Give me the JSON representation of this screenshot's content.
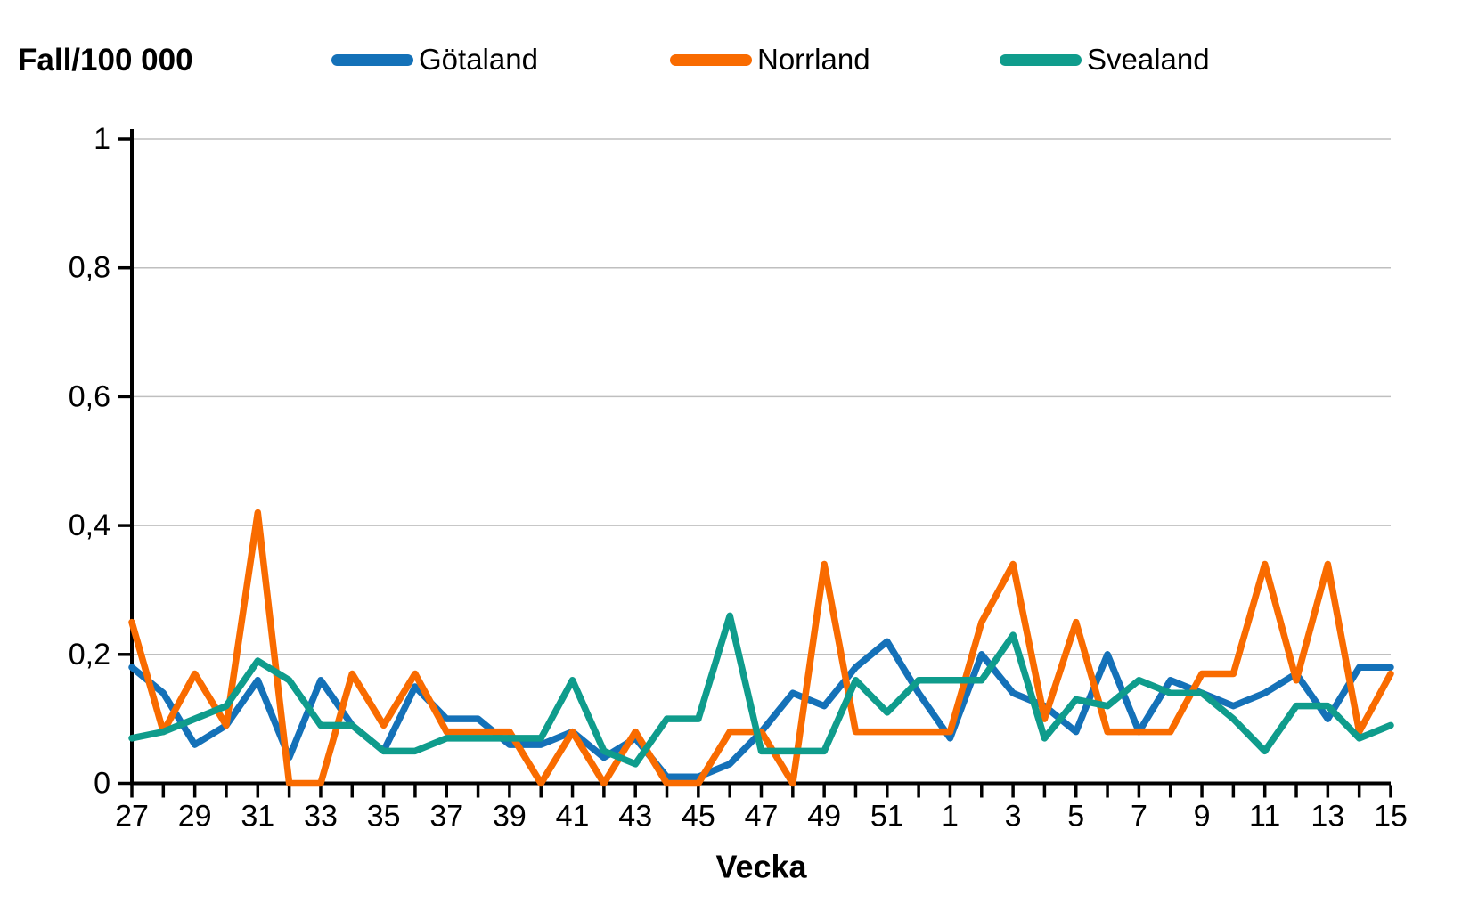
{
  "header": {
    "title": "Fall/100 000",
    "legend": [
      {
        "label": "Götaland",
        "color": "#1471B8"
      },
      {
        "label": "Norrland",
        "color": "#F96B00"
      },
      {
        "label": "Svealand",
        "color": "#0F9C8C"
      }
    ]
  },
  "chart_data": {
    "type": "line",
    "title": "Fall/100 000",
    "xlabel": "Vecka",
    "ylabel": "Fall/100 000",
    "ylim": [
      0,
      1
    ],
    "yticks": [
      0,
      0.2,
      0.4,
      0.6,
      0.8,
      1
    ],
    "ytick_labels": [
      "0",
      "0,2",
      "0,4",
      "0,6",
      "0,8",
      "1"
    ],
    "xtick_label_every": 2,
    "grid": true,
    "legend_position": "top",
    "axis_color": "#000000",
    "gridline_color": "#BFBFBF",
    "categories": [
      27,
      28,
      29,
      30,
      31,
      32,
      33,
      34,
      35,
      36,
      37,
      38,
      39,
      40,
      41,
      42,
      43,
      44,
      45,
      46,
      47,
      48,
      49,
      50,
      51,
      52,
      1,
      2,
      3,
      4,
      5,
      6,
      7,
      8,
      9,
      10,
      11,
      12,
      13,
      14,
      15
    ],
    "series": [
      {
        "name": "Götaland",
        "color": "#1471B8",
        "values": [
          0.18,
          0.14,
          0.06,
          0.09,
          0.16,
          0.04,
          0.16,
          0.09,
          0.05,
          0.15,
          0.1,
          0.1,
          0.06,
          0.06,
          0.08,
          0.04,
          0.07,
          0.01,
          0.01,
          0.03,
          0.08,
          0.14,
          0.12,
          0.18,
          0.22,
          0.14,
          0.07,
          0.2,
          0.14,
          0.12,
          0.08,
          0.2,
          0.08,
          0.16,
          0.14,
          0.12,
          0.14,
          0.17,
          0.1,
          0.18,
          0.18
        ]
      },
      {
        "name": "Norrland",
        "color": "#F96B00",
        "values": [
          0.25,
          0.08,
          0.17,
          0.09,
          0.42,
          0,
          0,
          0.17,
          0.09,
          0.17,
          0.08,
          0.08,
          0.08,
          0,
          0.08,
          0,
          0.08,
          0,
          0,
          0.08,
          0.08,
          0,
          0.34,
          0.08,
          0.08,
          0.08,
          0.08,
          0.25,
          0.34,
          0.1,
          0.25,
          0.08,
          0.08,
          0.08,
          0.17,
          0.17,
          0.34,
          0.16,
          0.34,
          0.08,
          0.17
        ]
      },
      {
        "name": "Svealand",
        "color": "#0F9C8C",
        "values": [
          0.07,
          0.08,
          0.1,
          0.12,
          0.19,
          0.16,
          0.09,
          0.09,
          0.05,
          0.05,
          0.07,
          0.07,
          0.07,
          0.07,
          0.16,
          0.05,
          0.03,
          0.1,
          0.1,
          0.26,
          0.05,
          0.05,
          0.05,
          0.16,
          0.11,
          0.16,
          0.16,
          0.16,
          0.23,
          0.07,
          0.13,
          0.12,
          0.16,
          0.14,
          0.14,
          0.1,
          0.05,
          0.12,
          0.12,
          0.07,
          0.09
        ]
      }
    ]
  }
}
